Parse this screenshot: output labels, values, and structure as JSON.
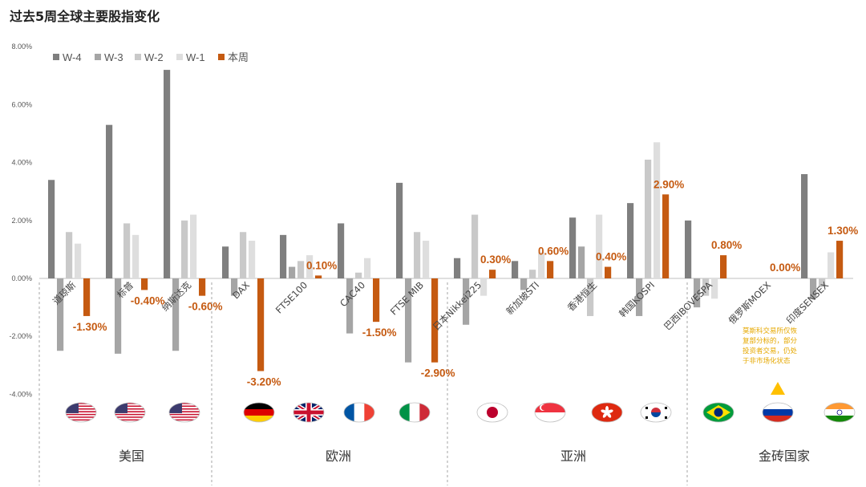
{
  "title": "过去5周全球主要股指变化",
  "chart_data": {
    "type": "bar",
    "title": "过去5周全球主要股指变化",
    "ylim": [
      -0.07,
      0.08
    ],
    "yticks": [
      "8.00%",
      "6.00%",
      "4.00%",
      "2.00%",
      "0.00%",
      "-2.00%",
      "-4.00%"
    ],
    "categories": [
      "道琼斯",
      "标普",
      "纳斯达克",
      "DAX",
      "FTSE100",
      "CAC40",
      "FTSE MIB",
      "日本Nikkei225",
      "新加坡STI",
      "香港恒生",
      "韩国KOSPI",
      "巴西IBOVESPA",
      "俄罗斯MOEX",
      "印度SENSEX"
    ],
    "series": [
      {
        "name": "W-4",
        "color": "#7F7F7F",
        "values": [
          3.4,
          5.3,
          7.2,
          1.1,
          1.5,
          1.9,
          3.3,
          0.7,
          0.6,
          2.1,
          2.6,
          2.0,
          0.0,
          3.6
        ]
      },
      {
        "name": "W-3",
        "color": "#A5A5A5",
        "values": [
          -2.5,
          -2.6,
          -2.5,
          -0.6,
          0.4,
          -1.9,
          -2.9,
          -1.6,
          -0.4,
          1.1,
          -1.3,
          -1.0,
          0.0,
          -0.7
        ]
      },
      {
        "name": "W-2",
        "color": "#C9C9C9",
        "values": [
          1.6,
          1.9,
          2.0,
          1.6,
          0.6,
          0.2,
          1.6,
          2.2,
          0.3,
          -1.3,
          4.1,
          -0.6,
          0.0,
          -0.3
        ]
      },
      {
        "name": "W-1",
        "color": "#DEDEDE",
        "values": [
          1.2,
          1.5,
          2.2,
          1.3,
          0.8,
          0.7,
          1.3,
          -0.6,
          0.9,
          2.2,
          4.7,
          -0.7,
          0.0,
          0.9
        ]
      },
      {
        "name": "本周",
        "color": "#C55A11",
        "values": [
          -1.3,
          -0.4,
          -0.6,
          -3.2,
          0.1,
          -1.5,
          -2.9,
          0.3,
          0.6,
          0.4,
          2.9,
          0.8,
          0.0,
          1.3
        ]
      }
    ],
    "data_labels": [
      "-1.30%",
      "-0.40%",
      "-0.60%",
      "-3.20%",
      "0.10%",
      "-1.50%",
      "-2.90%",
      "0.30%",
      "0.60%",
      "0.40%",
      "2.90%",
      "0.80%",
      "0.00%",
      "1.30%"
    ],
    "groups": [
      {
        "name": "美国",
        "categories": [
          "道琼斯",
          "标普",
          "纳斯达克"
        ],
        "flags": [
          "us",
          "us",
          "us"
        ]
      },
      {
        "name": "欧洲",
        "categories": [
          "DAX",
          "FTSE100",
          "CAC40",
          "FTSE MIB"
        ],
        "flags": [
          "de",
          "gb",
          "fr",
          "it"
        ]
      },
      {
        "name": "亚洲",
        "categories": [
          "日本Nikkei225",
          "新加坡STI",
          "香港恒生",
          "韩国KOSPI"
        ],
        "flags": [
          "jp",
          "sg",
          "hk",
          "kr"
        ]
      },
      {
        "name": "金砖国家",
        "categories": [
          "巴西IBOVESPA",
          "俄罗斯MOEX",
          "印度SENSEX"
        ],
        "flags": [
          "br",
          "ru",
          "in"
        ]
      }
    ],
    "annotation": {
      "lines": [
        "莫斯科交易所仅恢",
        "复部分标的，部分",
        "投资者交易，仍处",
        "于非市场化状态"
      ],
      "marker": "triangle-up",
      "color": "#FFC000"
    },
    "legend": "top-left",
    "grid": false
  }
}
